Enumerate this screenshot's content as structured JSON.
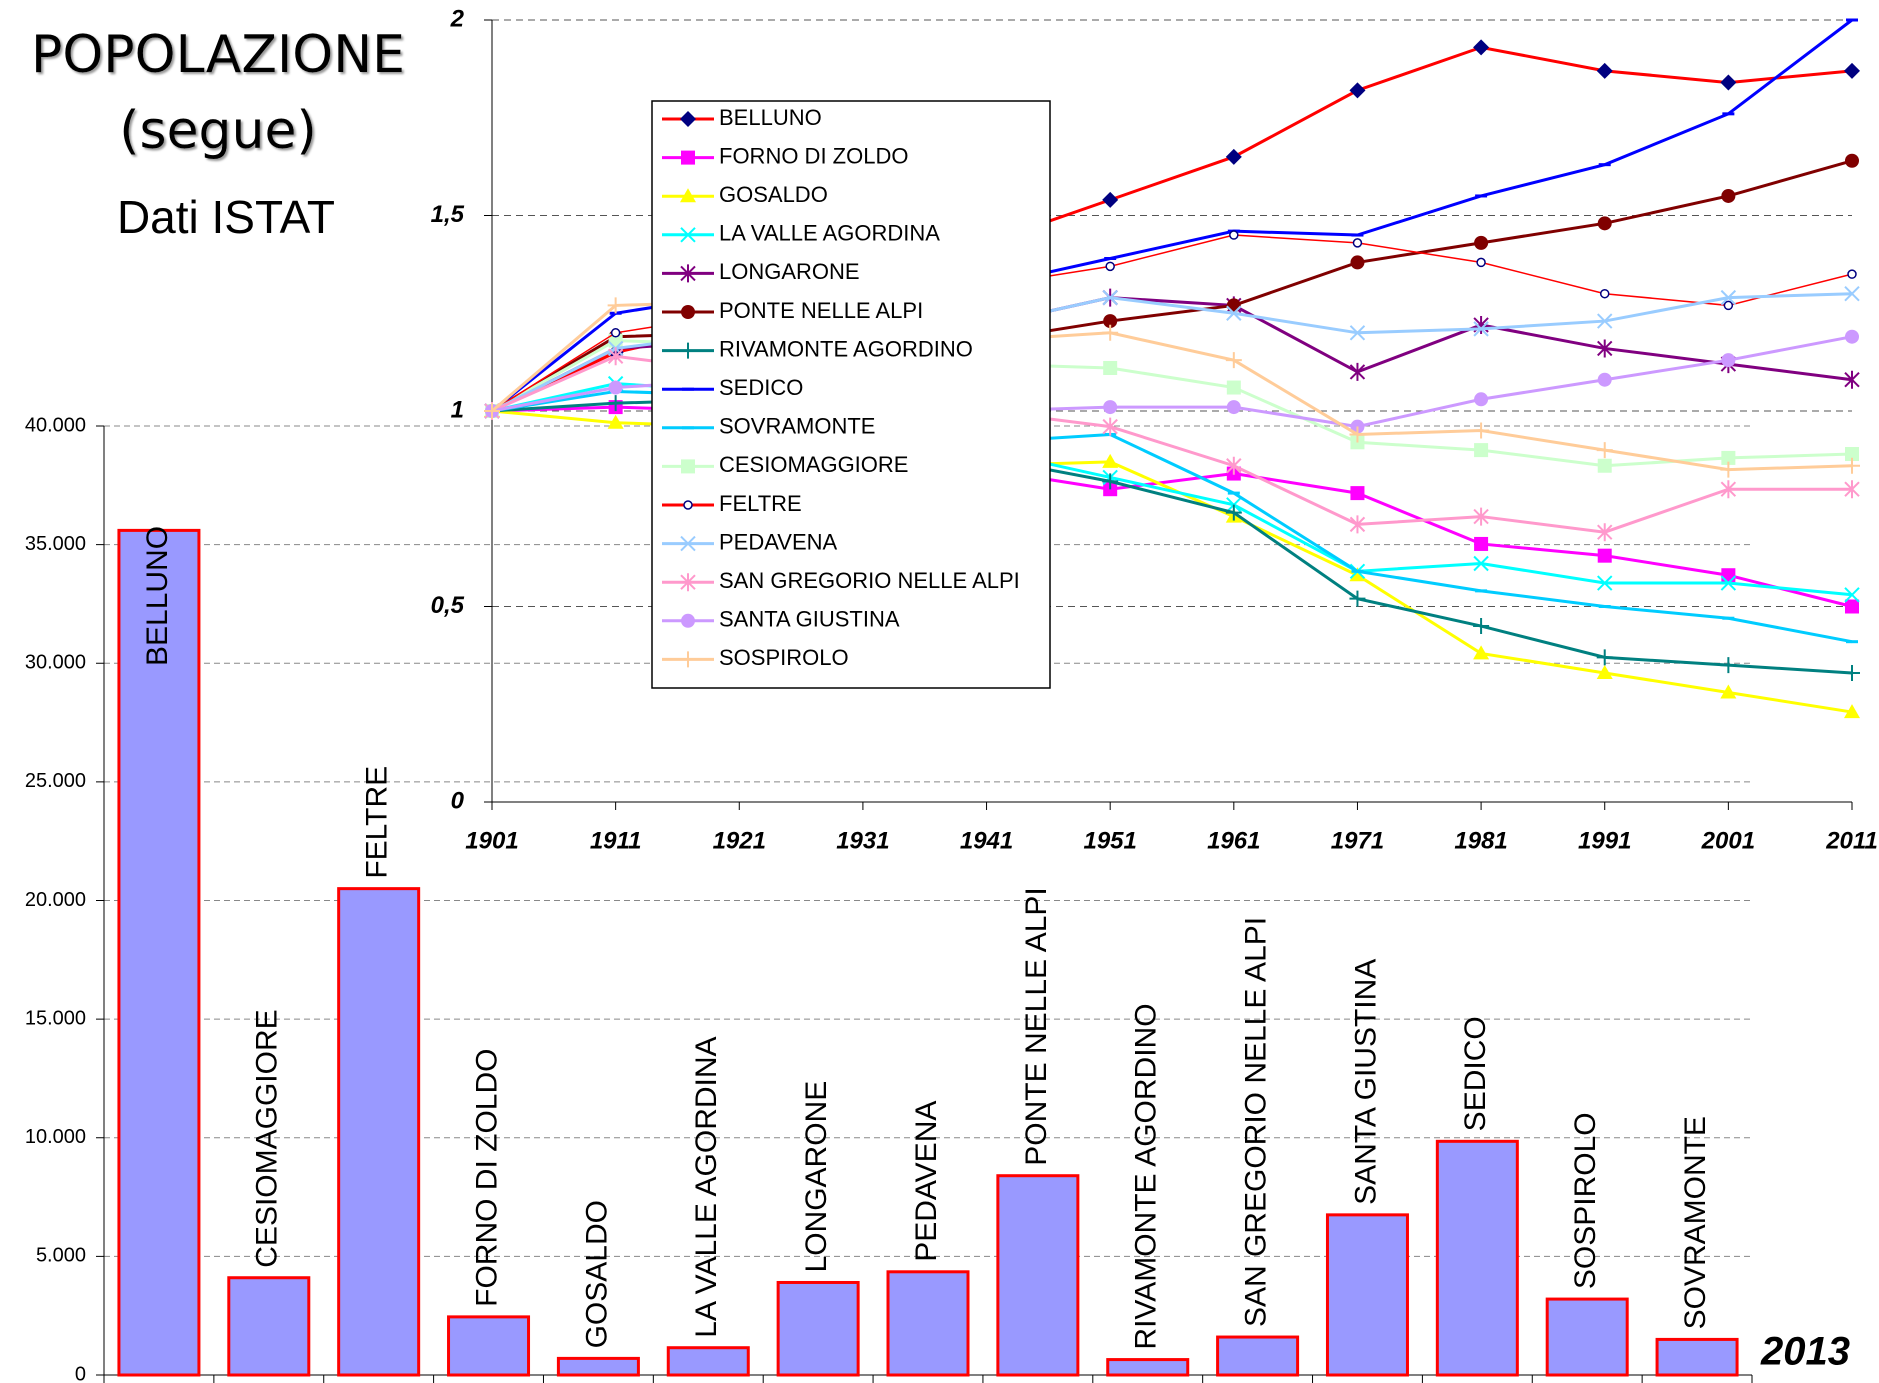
{
  "header": {
    "title": "POPOLAZIONE",
    "subtitle": "(segue)",
    "source": "Dati ISTAT"
  },
  "chart_data": [
    {
      "type": "bar",
      "categories": [
        "BELLUNO",
        "CESIOMAGGIORE",
        "FELTRE",
        "FORNO DI ZOLDO",
        "GOSALDO",
        "LA VALLE AGORDINA",
        "LONGARONE",
        "PEDAVENA",
        "PONTE NELLE ALPI",
        "RIVAMONTE AGORDINO",
        "SAN GREGORIO NELLE ALPI",
        "SANTA GIUSTINA",
        "SEDICO",
        "SOSPIROLO",
        "SOVRAMONTE"
      ],
      "values": [
        35600,
        4100,
        20500,
        2450,
        700,
        1150,
        3900,
        4350,
        8400,
        650,
        1600,
        6750,
        9850,
        3200,
        1500
      ],
      "color": "#9999ff",
      "edge_color": "#ff0000",
      "ylim": [
        0,
        40000
      ],
      "yticks": [
        0,
        {
          "value": 5000,
          "label": "5.000"
        },
        {
          "value": 10000,
          "label": "10.000"
        },
        {
          "value": 15000,
          "label": "15.000"
        },
        {
          "value": 20000,
          "label": "20.000"
        },
        {
          "value": 25000,
          "label": "25.000"
        },
        {
          "value": 30000,
          "label": "30.000"
        },
        {
          "value": 35000,
          "label": "35.000"
        },
        {
          "value": 40000,
          "label": "40.000"
        }
      ],
      "grid": true,
      "annotation": "2013"
    },
    {
      "type": "line",
      "x": [
        1901,
        1911,
        1921,
        1931,
        1941,
        1951,
        1961,
        1971,
        1981,
        1991,
        2001,
        2011
      ],
      "xlim": [
        1901,
        2011
      ],
      "xticks": [
        1901,
        1911,
        1921,
        1931,
        1941,
        1951,
        1961,
        1971,
        1981,
        1991,
        2001,
        2011
      ],
      "ylim": [
        0,
        2
      ],
      "yticks": [
        0,
        {
          "value": 0.5,
          "label": "0,5"
        },
        1,
        {
          "value": 1.5,
          "label": "1,5"
        },
        2
      ],
      "grid": true,
      "legend": "upper left",
      "series": [
        {
          "name": "BELLUNO",
          "color": "#ff0000",
          "marker": "diamond",
          "marker_color": "#000080",
          "values": [
            1,
            1.15,
            1.22,
            1.32,
            1.43,
            1.54,
            1.65,
            1.82,
            1.93,
            1.87,
            1.84,
            1.87
          ]
        },
        {
          "name": "FORNO DI ZOLDO",
          "color": "#ff00ff",
          "marker": "square",
          "values": [
            1,
            1.01,
            1.0,
            0.95,
            0.85,
            0.8,
            0.84,
            0.79,
            0.66,
            0.63,
            0.58,
            0.5
          ]
        },
        {
          "name": "GOSALDO",
          "color": "#ffff00",
          "marker": "triangle",
          "values": [
            1,
            0.97,
            0.96,
            0.92,
            0.86,
            0.87,
            0.73,
            0.58,
            0.38,
            0.33,
            0.28,
            0.23
          ]
        },
        {
          "name": "LA VALLE AGORDINA",
          "color": "#00ffff",
          "marker": "x",
          "values": [
            1,
            1.07,
            1.05,
            1.0,
            0.9,
            0.83,
            0.76,
            0.59,
            0.61,
            0.56,
            0.56,
            0.53
          ]
        },
        {
          "name": "LONGARONE",
          "color": "#800080",
          "marker": "star",
          "values": [
            1,
            1.16,
            1.18,
            1.2,
            1.22,
            1.29,
            1.27,
            1.1,
            1.22,
            1.16,
            1.12,
            1.08
          ]
        },
        {
          "name": "PONTE NELLE ALPI",
          "color": "#800000",
          "marker": "circle",
          "values": [
            1,
            1.19,
            1.2,
            1.2,
            1.18,
            1.23,
            1.27,
            1.38,
            1.43,
            1.48,
            1.55,
            1.64
          ]
        },
        {
          "name": "RIVAMONTE AGORDINO",
          "color": "#008080",
          "marker": "plus",
          "values": [
            1,
            1.02,
            1.03,
            0.98,
            0.88,
            0.82,
            0.74,
            0.52,
            0.45,
            0.37,
            0.35,
            0.33
          ]
        },
        {
          "name": "SEDICO",
          "color": "#0000ff",
          "marker": "dash",
          "values": [
            1,
            1.25,
            1.3,
            1.3,
            1.32,
            1.39,
            1.46,
            1.45,
            1.55,
            1.63,
            1.76,
            2.0
          ]
        },
        {
          "name": "SOVRAMONTE",
          "color": "#00ccff",
          "marker": "dash",
          "values": [
            1,
            1.05,
            1.04,
            1.0,
            0.92,
            0.94,
            0.79,
            0.59,
            0.54,
            0.5,
            0.47,
            0.41
          ]
        },
        {
          "name": "CESIOMAGGIORE",
          "color": "#ccffcc",
          "marker": "square",
          "values": [
            1,
            1.18,
            1.17,
            1.15,
            1.12,
            1.11,
            1.06,
            0.92,
            0.9,
            0.86,
            0.88,
            0.89
          ]
        },
        {
          "name": "FELTRE",
          "color": "#ff0000",
          "marker": "open-circle",
          "marker_color": "#000080",
          "values": [
            1,
            1.2,
            1.25,
            1.28,
            1.32,
            1.37,
            1.45,
            1.43,
            1.38,
            1.3,
            1.27,
            1.35
          ]
        },
        {
          "name": "PEDAVENA",
          "color": "#99ccff",
          "marker": "x",
          "values": [
            1,
            1.16,
            1.2,
            1.22,
            1.22,
            1.29,
            1.25,
            1.2,
            1.21,
            1.23,
            1.29,
            1.3
          ]
        },
        {
          "name": "SAN GREGORIO NELLE ALPI",
          "color": "#ff99cc",
          "marker": "star",
          "values": [
            1,
            1.14,
            1.1,
            1.05,
            1.0,
            0.96,
            0.86,
            0.71,
            0.73,
            0.69,
            0.8,
            0.8
          ]
        },
        {
          "name": "SANTA GIUSTINA",
          "color": "#cc99ff",
          "marker": "circle",
          "values": [
            1,
            1.06,
            1.08,
            1.05,
            1.0,
            1.01,
            1.01,
            0.96,
            1.03,
            1.08,
            1.13,
            1.19
          ]
        },
        {
          "name": "SOSPIROLO",
          "color": "#ffcc99",
          "marker": "plus",
          "values": [
            1,
            1.27,
            1.28,
            1.25,
            1.18,
            1.2,
            1.13,
            0.94,
            0.95,
            0.9,
            0.85,
            0.86
          ]
        }
      ]
    }
  ]
}
